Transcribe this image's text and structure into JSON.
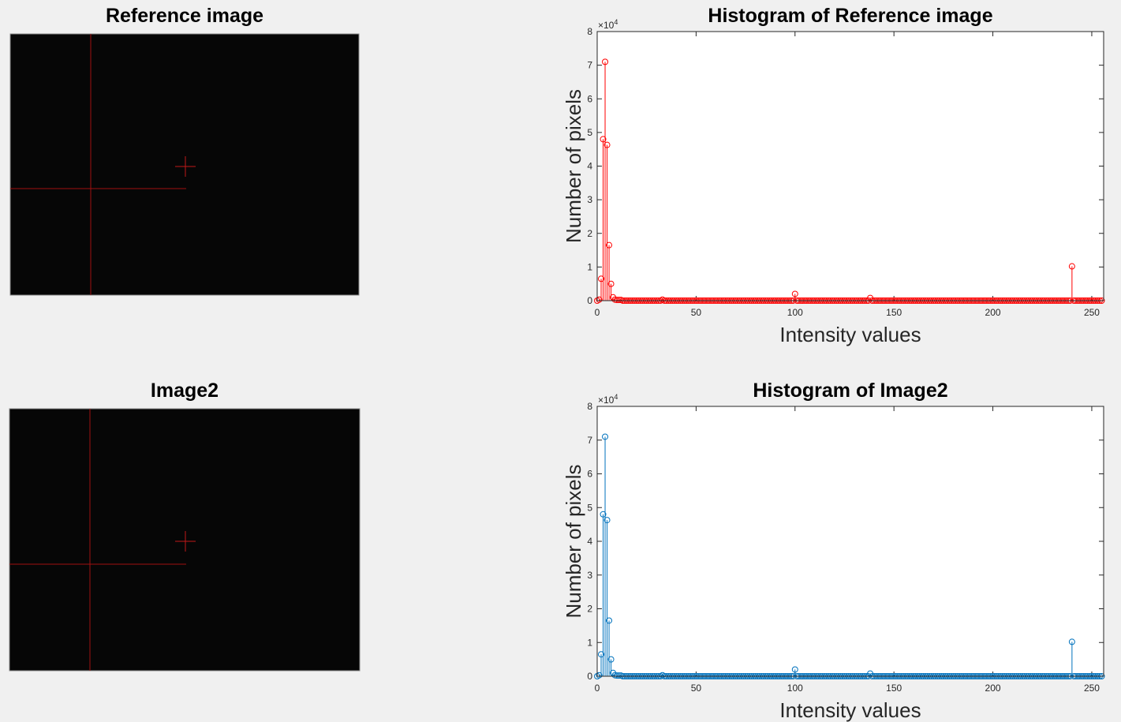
{
  "images": [
    {
      "title": "Reference image"
    },
    {
      "title": "Image2"
    }
  ],
  "chart_data": [
    {
      "type": "stem",
      "title": "Histogram of Reference image",
      "x_label": "Intensity values",
      "y_label": "Number of pixels",
      "y_multiplier": "×10",
      "y_multiplier_exponent": "4",
      "color": "#ff0000",
      "xlim": [
        0,
        256
      ],
      "ylim": [
        0,
        8
      ],
      "xticks": [
        0,
        50,
        100,
        150,
        200,
        250
      ],
      "yticks": [
        0,
        1,
        2,
        3,
        4,
        5,
        6,
        7,
        8
      ],
      "x": [
        0,
        1,
        2,
        3,
        4,
        5,
        6,
        7,
        8,
        9,
        10,
        11,
        12,
        13,
        14,
        15,
        16,
        17,
        18,
        19,
        20,
        21,
        22,
        23,
        24,
        25,
        26,
        27,
        28,
        29,
        30,
        31,
        32,
        33,
        34,
        35,
        36,
        37,
        38,
        39,
        40,
        41,
        42,
        43,
        44,
        45,
        46,
        47,
        48,
        49,
        50,
        51,
        52,
        53,
        54,
        55,
        56,
        57,
        58,
        59,
        60,
        61,
        62,
        63,
        64,
        65,
        66,
        67,
        68,
        69,
        70,
        71,
        72,
        73,
        74,
        75,
        76,
        77,
        78,
        79,
        80,
        81,
        82,
        83,
        84,
        85,
        86,
        87,
        88,
        89,
        90,
        91,
        92,
        93,
        94,
        95,
        96,
        97,
        98,
        99,
        100,
        101,
        102,
        103,
        104,
        105,
        106,
        107,
        108,
        109,
        110,
        111,
        112,
        113,
        114,
        115,
        116,
        117,
        118,
        119,
        120,
        121,
        122,
        123,
        124,
        125,
        126,
        127,
        128,
        129,
        130,
        131,
        132,
        133,
        134,
        135,
        136,
        137,
        138,
        139,
        140,
        141,
        142,
        143,
        144,
        145,
        146,
        147,
        148,
        149,
        150,
        151,
        152,
        153,
        154,
        155,
        156,
        157,
        158,
        159,
        160,
        161,
        162,
        163,
        164,
        165,
        166,
        167,
        168,
        169,
        170,
        171,
        172,
        173,
        174,
        175,
        176,
        177,
        178,
        179,
        180,
        181,
        182,
        183,
        184,
        185,
        186,
        187,
        188,
        189,
        190,
        191,
        192,
        193,
        194,
        195,
        196,
        197,
        198,
        199,
        200,
        201,
        202,
        203,
        204,
        205,
        206,
        207,
        208,
        209,
        210,
        211,
        212,
        213,
        214,
        215,
        216,
        217,
        218,
        219,
        220,
        221,
        222,
        223,
        224,
        225,
        226,
        227,
        228,
        229,
        230,
        231,
        232,
        233,
        234,
        235,
        236,
        237,
        238,
        239,
        240,
        241,
        242,
        243,
        244,
        245,
        246,
        247,
        248,
        249,
        250,
        251,
        252,
        253,
        254,
        255
      ],
      "values": [
        0,
        0.03,
        0.65,
        4.8,
        7.1,
        4.63,
        1.65,
        0.5,
        0.1,
        0.03,
        0.02,
        0.02,
        0.02,
        0,
        0,
        0,
        0,
        0,
        0,
        0,
        0,
        0,
        0,
        0,
        0,
        0,
        0,
        0,
        0,
        0,
        0,
        0,
        0,
        0.03,
        0,
        0,
        0,
        0,
        0,
        0,
        0,
        0,
        0,
        0,
        0,
        0,
        0,
        0,
        0,
        0,
        0,
        0,
        0,
        0,
        0,
        0,
        0,
        0,
        0,
        0,
        0,
        0,
        0,
        0,
        0,
        0,
        0,
        0,
        0,
        0,
        0,
        0,
        0,
        0,
        0,
        0,
        0,
        0,
        0,
        0,
        0,
        0,
        0,
        0,
        0,
        0,
        0,
        0,
        0,
        0,
        0,
        0,
        0,
        0,
        0,
        0,
        0,
        0,
        0,
        0,
        0.2,
        0,
        0,
        0,
        0,
        0,
        0,
        0,
        0,
        0,
        0,
        0,
        0,
        0,
        0,
        0,
        0,
        0,
        0,
        0,
        0,
        0,
        0,
        0,
        0,
        0,
        0,
        0,
        0,
        0,
        0,
        0,
        0,
        0,
        0,
        0,
        0,
        0,
        0.08,
        0,
        0,
        0,
        0,
        0,
        0,
        0,
        0,
        0,
        0,
        0,
        0,
        0,
        0,
        0,
        0,
        0,
        0,
        0,
        0,
        0,
        0,
        0,
        0,
        0,
        0,
        0,
        0,
        0,
        0,
        0,
        0,
        0,
        0,
        0,
        0,
        0,
        0,
        0,
        0,
        0,
        0,
        0,
        0,
        0,
        0,
        0,
        0,
        0,
        0,
        0,
        0,
        0,
        0,
        0,
        0,
        0,
        0,
        0,
        0,
        0,
        0,
        0,
        0,
        0,
        0,
        0,
        0,
        0,
        0,
        0,
        0,
        0,
        0,
        0,
        0,
        0,
        0,
        0,
        0,
        0,
        0,
        0,
        0,
        0,
        0,
        0,
        0,
        0,
        0,
        0,
        0,
        0,
        0,
        0,
        0,
        0,
        0,
        0,
        0,
        0,
        1.02,
        0,
        0,
        0,
        0,
        0,
        0,
        0,
        0,
        0,
        0,
        0,
        0,
        0,
        0,
        0
      ]
    },
    {
      "type": "stem",
      "title": "Histogram of Image2",
      "x_label": "Intensity values",
      "y_label": "Number of pixels",
      "y_multiplier": "×10",
      "y_multiplier_exponent": "4",
      "color": "#0072bd",
      "xlim": [
        0,
        256
      ],
      "ylim": [
        0,
        8
      ],
      "xticks": [
        0,
        50,
        100,
        150,
        200,
        250
      ],
      "yticks": [
        0,
        1,
        2,
        3,
        4,
        5,
        6,
        7,
        8
      ],
      "x": [
        0,
        1,
        2,
        3,
        4,
        5,
        6,
        7,
        8,
        9,
        10,
        11,
        12,
        13,
        14,
        15,
        16,
        17,
        18,
        19,
        20,
        21,
        22,
        23,
        24,
        25,
        26,
        27,
        28,
        29,
        30,
        31,
        32,
        33,
        34,
        35,
        36,
        37,
        38,
        39,
        40,
        41,
        42,
        43,
        44,
        45,
        46,
        47,
        48,
        49,
        50,
        51,
        52,
        53,
        54,
        55,
        56,
        57,
        58,
        59,
        60,
        61,
        62,
        63,
        64,
        65,
        66,
        67,
        68,
        69,
        70,
        71,
        72,
        73,
        74,
        75,
        76,
        77,
        78,
        79,
        80,
        81,
        82,
        83,
        84,
        85,
        86,
        87,
        88,
        89,
        90,
        91,
        92,
        93,
        94,
        95,
        96,
        97,
        98,
        99,
        100,
        101,
        102,
        103,
        104,
        105,
        106,
        107,
        108,
        109,
        110,
        111,
        112,
        113,
        114,
        115,
        116,
        117,
        118,
        119,
        120,
        121,
        122,
        123,
        124,
        125,
        126,
        127,
        128,
        129,
        130,
        131,
        132,
        133,
        134,
        135,
        136,
        137,
        138,
        139,
        140,
        141,
        142,
        143,
        144,
        145,
        146,
        147,
        148,
        149,
        150,
        151,
        152,
        153,
        154,
        155,
        156,
        157,
        158,
        159,
        160,
        161,
        162,
        163,
        164,
        165,
        166,
        167,
        168,
        169,
        170,
        171,
        172,
        173,
        174,
        175,
        176,
        177,
        178,
        179,
        180,
        181,
        182,
        183,
        184,
        185,
        186,
        187,
        188,
        189,
        190,
        191,
        192,
        193,
        194,
        195,
        196,
        197,
        198,
        199,
        200,
        201,
        202,
        203,
        204,
        205,
        206,
        207,
        208,
        209,
        210,
        211,
        212,
        213,
        214,
        215,
        216,
        217,
        218,
        219,
        220,
        221,
        222,
        223,
        224,
        225,
        226,
        227,
        228,
        229,
        230,
        231,
        232,
        233,
        234,
        235,
        236,
        237,
        238,
        239,
        240,
        241,
        242,
        243,
        244,
        245,
        246,
        247,
        248,
        249,
        250,
        251,
        252,
        253,
        254,
        255
      ],
      "values": [
        0,
        0.03,
        0.65,
        4.8,
        7.1,
        4.63,
        1.65,
        0.5,
        0.1,
        0.03,
        0.02,
        0.02,
        0.02,
        0,
        0,
        0,
        0,
        0,
        0,
        0,
        0,
        0,
        0,
        0,
        0,
        0,
        0,
        0,
        0,
        0,
        0,
        0,
        0,
        0.03,
        0,
        0,
        0,
        0,
        0,
        0,
        0,
        0,
        0,
        0,
        0,
        0,
        0,
        0,
        0,
        0,
        0,
        0,
        0,
        0,
        0,
        0,
        0,
        0,
        0,
        0,
        0,
        0,
        0,
        0,
        0,
        0,
        0,
        0,
        0,
        0,
        0,
        0,
        0,
        0,
        0,
        0,
        0,
        0,
        0,
        0,
        0,
        0,
        0,
        0,
        0,
        0,
        0,
        0,
        0,
        0,
        0,
        0,
        0,
        0,
        0,
        0,
        0,
        0,
        0,
        0,
        0.2,
        0,
        0,
        0,
        0,
        0,
        0,
        0,
        0,
        0,
        0,
        0,
        0,
        0,
        0,
        0,
        0,
        0,
        0,
        0,
        0,
        0,
        0,
        0,
        0,
        0,
        0,
        0,
        0,
        0,
        0,
        0,
        0,
        0,
        0,
        0,
        0,
        0,
        0.08,
        0,
        0,
        0,
        0,
        0,
        0,
        0,
        0,
        0,
        0,
        0,
        0,
        0,
        0,
        0,
        0,
        0,
        0,
        0,
        0,
        0,
        0,
        0,
        0,
        0,
        0,
        0,
        0,
        0,
        0,
        0,
        0,
        0,
        0,
        0,
        0,
        0,
        0,
        0,
        0,
        0,
        0,
        0,
        0,
        0,
        0,
        0,
        0,
        0,
        0,
        0,
        0,
        0,
        0,
        0,
        0,
        0,
        0,
        0,
        0,
        0,
        0,
        0,
        0,
        0,
        0,
        0,
        0,
        0,
        0,
        0,
        0,
        0,
        0,
        0,
        0,
        0,
        0,
        0,
        0,
        0,
        0,
        0,
        0,
        0,
        0,
        0,
        0,
        0,
        0,
        0,
        0,
        0,
        0,
        0,
        0,
        0,
        0,
        0,
        0,
        0,
        1.02,
        0,
        0,
        0,
        0,
        0,
        0,
        0,
        0,
        0,
        0,
        0,
        0,
        0,
        0,
        0
      ]
    }
  ]
}
